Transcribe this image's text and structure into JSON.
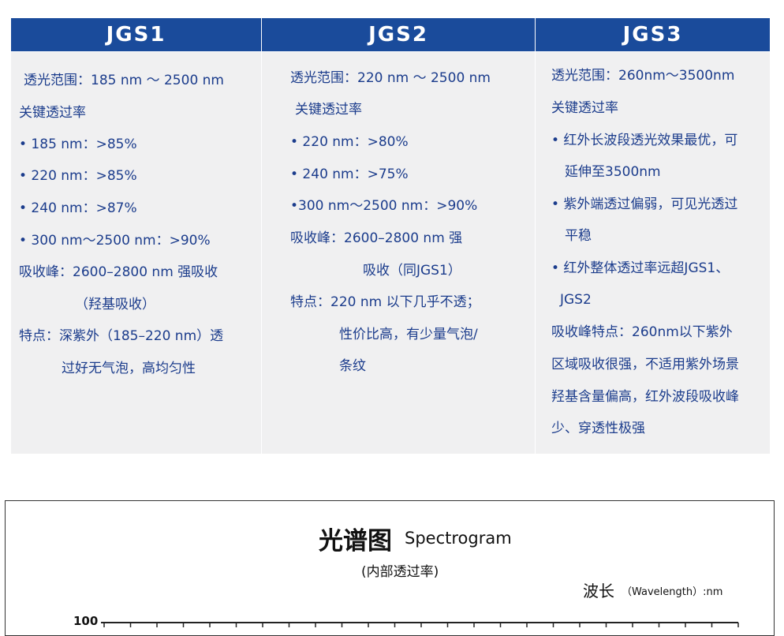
{
  "table": {
    "headers": [
      "JGS1",
      "JGS2",
      "JGS3"
    ],
    "columns": [
      [
        "透光范围：185 nm ～ 2500 nm",
        "关键透过率",
        "• 185 nm：>85%",
        "• 220 nm：>85%",
        "• 240 nm：>87%",
        "• 300 nm～2500 nm：>90%",
        "吸收峰：2600–2800 nm 强吸收",
        "（羟基吸收）",
        "特点：深紫外（185–220 nm）透",
        "过好无气泡，高均匀性"
      ],
      [
        "透光范围：220 nm ～ 2500 nm",
        "关键透过率",
        "• 220 nm：>80%",
        "• 240 nm：>75%",
        "•300 nm～2500 nm：>90%",
        "吸收峰：2600–2800 nm 强",
        "吸收（同JGS1）",
        "特点：220 nm 以下几乎不透；",
        "性价比高，有少量气泡/",
        "条纹"
      ],
      [
        "透光范围：260nm～3500nm",
        "关键透过率",
        "• 红外长波段透光效果最优，可",
        "延伸至3500nm",
        "• 紫外端透过偏弱，可见光透过",
        "平稳",
        "• 红外整体透过率远超JGS1、",
        "JGS2",
        "吸收峰特点：260nm以下紫外",
        "区域吸收很强，不适用紫外场景",
        "羟基含量偏高，红外波段吸收峰",
        "少、穿透性极强"
      ]
    ]
  },
  "spectrogram": {
    "title": "光谱图",
    "title_en": "Spectrogram",
    "subtitle": "(内部透过率)",
    "axis_label": "波长",
    "axis_label_en": "（Wavelength）:nm",
    "y_top_label": "100"
  }
}
